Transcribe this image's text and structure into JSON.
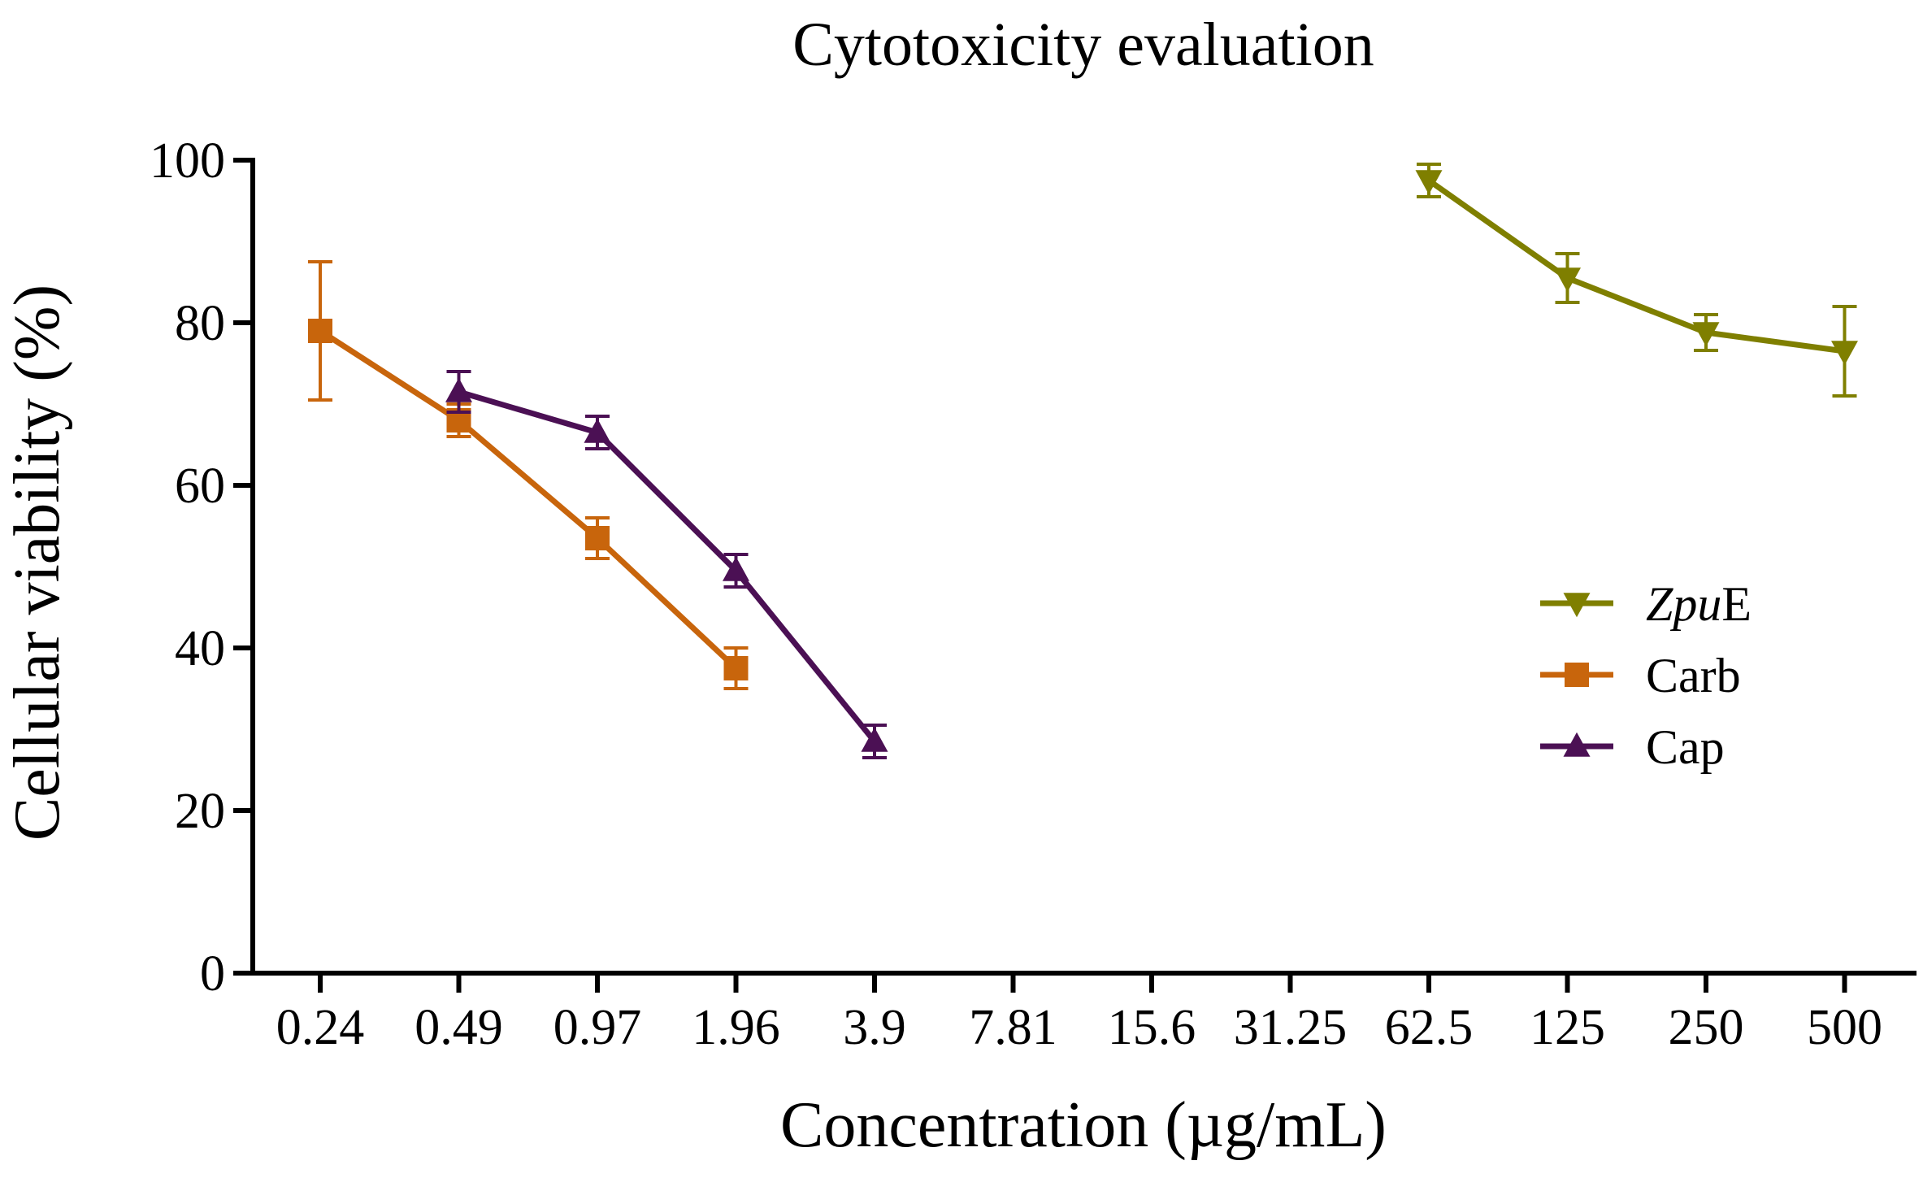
{
  "chart_data": {
    "type": "line",
    "title": "Cytotoxicity evaluation",
    "xlabel": "Concentration (µg/mL)",
    "ylabel": "Cellular viability (%)",
    "categories": [
      "0.24",
      "0.49",
      "0.97",
      "1.96",
      "3.9",
      "7.81",
      "15.6",
      "31.25",
      "62.5",
      "125",
      "250",
      "500"
    ],
    "ylim": [
      0,
      100
    ],
    "yticks": [
      "0",
      "20",
      "40",
      "60",
      "80",
      "100"
    ],
    "grid": false,
    "legend_position": "right",
    "series": [
      {
        "name": "ZpuE",
        "legend_parts": [
          {
            "text": "Zpu",
            "italic": true
          },
          {
            "text": "E",
            "italic": false
          }
        ],
        "color": "#7f7f00",
        "marker": "triangle-down",
        "points": [
          {
            "category": "62.5",
            "value": 97.5,
            "error": 2.0
          },
          {
            "category": "125",
            "value": 85.5,
            "error": 3.0
          },
          {
            "category": "250",
            "value": 78.8,
            "error": 2.2
          },
          {
            "category": "500",
            "value": 76.5,
            "error": 5.5
          }
        ]
      },
      {
        "name": "Carb",
        "legend_parts": [
          {
            "text": "Carb",
            "italic": false
          }
        ],
        "color": "#c8650c",
        "marker": "square",
        "points": [
          {
            "category": "0.24",
            "value": 79.0,
            "error": 8.5
          },
          {
            "category": "0.49",
            "value": 68.0,
            "error": 2.0
          },
          {
            "category": "0.97",
            "value": 53.5,
            "error": 2.5
          },
          {
            "category": "1.96",
            "value": 37.5,
            "error": 2.5
          }
        ]
      },
      {
        "name": "Cap",
        "legend_parts": [
          {
            "text": "Cap",
            "italic": false
          }
        ],
        "color": "#4b1054",
        "marker": "triangle-up",
        "points": [
          {
            "category": "0.49",
            "value": 71.5,
            "error": 2.5
          },
          {
            "category": "0.97",
            "value": 66.5,
            "error": 2.0
          },
          {
            "category": "1.96",
            "value": 49.5,
            "error": 2.0
          },
          {
            "category": "3.9",
            "value": 28.5,
            "error": 2.0
          }
        ]
      }
    ]
  }
}
